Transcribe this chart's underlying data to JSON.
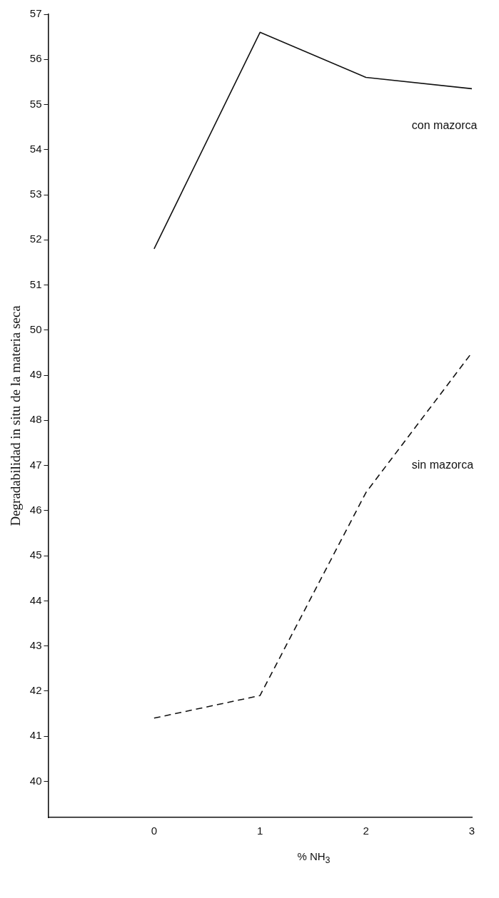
{
  "chart_data": {
    "type": "line",
    "xlabel": "% NH$_{3}$",
    "ylabel": "Degradabilidad in situ de la materia seca",
    "x": [
      0,
      1,
      2,
      3
    ],
    "series": [
      {
        "name": "con mazorca",
        "color": "#111111",
        "values": [
          51.8,
          56.6,
          55.6,
          55.35
        ],
        "line_style": "solid"
      },
      {
        "name": "sin mazorca",
        "color": "#111111",
        "values": [
          41.4,
          41.9,
          46.4,
          49.5
        ],
        "line_style": "dashed"
      }
    ],
    "xlim": [
      -1,
      3
    ],
    "xticks": [
      0,
      1,
      2,
      3
    ],
    "ylim": [
      39.2,
      57
    ],
    "yticks": [
      40,
      41,
      42,
      43,
      44,
      45,
      46,
      47,
      48,
      49,
      50,
      51,
      52,
      53,
      54,
      55,
      56,
      57
    ],
    "grid": false,
    "legend": false,
    "marker": "none"
  }
}
